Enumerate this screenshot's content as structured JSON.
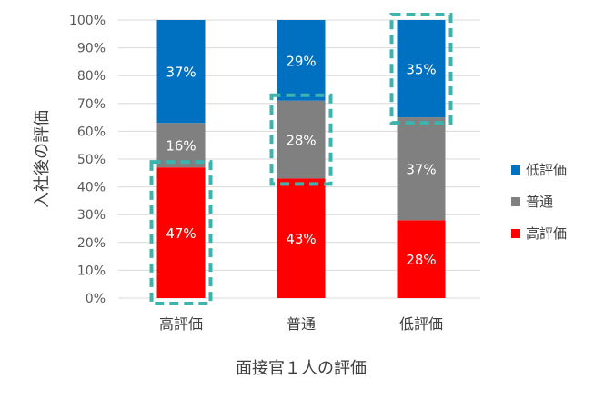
{
  "chart_data": {
    "type": "bar",
    "stacked": true,
    "percent": true,
    "xlabel": "面接官１人の評価",
    "ylabel": "入社後の評価",
    "ylim": [
      0,
      100
    ],
    "yticks": [
      "0%",
      "10%",
      "20%",
      "30%",
      "40%",
      "50%",
      "60%",
      "70%",
      "80%",
      "90%",
      "100%"
    ],
    "categories": [
      "高評価",
      "普通",
      "低評価"
    ],
    "series": [
      {
        "name": "高評価",
        "color": "#ff0000",
        "values": [
          47,
          43,
          28
        ],
        "labels": [
          "47%",
          "43%",
          "28%"
        ]
      },
      {
        "name": "普通",
        "color": "#808080",
        "values": [
          16,
          28,
          37
        ],
        "labels": [
          "16%",
          "28%",
          "37%"
        ]
      },
      {
        "name": "低評価",
        "color": "#0070c0",
        "values": [
          37,
          29,
          35
        ],
        "labels": [
          "37%",
          "29%",
          "35%"
        ]
      }
    ],
    "legend": {
      "position": "right",
      "order": [
        "低評価",
        "普通",
        "高評価"
      ]
    },
    "grid": true,
    "highlights": [
      {
        "category": "高評価",
        "series": "高評価",
        "color": "#3cb3ad"
      },
      {
        "category": "普通",
        "series": "普通",
        "color": "#3cb3ad"
      },
      {
        "category": "低評価",
        "series": "低評価",
        "color": "#3cb3ad"
      }
    ]
  }
}
